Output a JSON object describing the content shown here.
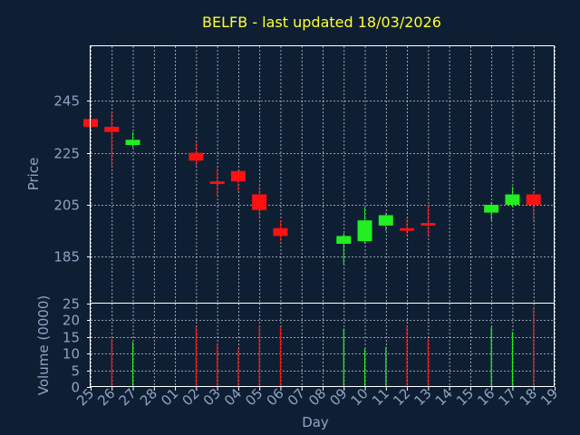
{
  "chart_data": [
    {
      "type": "candlestick",
      "title": "BELFB - last updated 18/03/2026",
      "ylabel": "Price",
      "xlabel": "Day",
      "ylim": [
        167,
        266
      ],
      "yticks": [
        185,
        205,
        225,
        245
      ],
      "grid": true,
      "colors": {
        "up": "#22ee22",
        "down": "#ff1111",
        "background": "#0f1f33",
        "text": "#8fa3c2",
        "title": "#ffff33"
      },
      "x_tick_labels": [
        "25",
        "26",
        "27",
        "28",
        "01",
        "02",
        "03",
        "04",
        "05",
        "06",
        "07",
        "08",
        "09",
        "10",
        "11",
        "12",
        "13",
        "14",
        "15",
        "16",
        "17",
        "18",
        "19"
      ],
      "candles": [
        {
          "slot": 0,
          "open": 238,
          "close": 235,
          "high": 239,
          "low": 234
        },
        {
          "slot": 1,
          "open": 235,
          "close": 233,
          "high": 241,
          "low": 220
        },
        {
          "slot": 2,
          "open": 228,
          "close": 230,
          "high": 233,
          "low": 227
        },
        {
          "slot": 5,
          "open": 225,
          "close": 222,
          "high": 229,
          "low": 220
        },
        {
          "slot": 6,
          "open": 214,
          "close": 213,
          "high": 219,
          "low": 208
        },
        {
          "slot": 7,
          "open": 218,
          "close": 214,
          "high": 218,
          "low": 210
        },
        {
          "slot": 8,
          "open": 209,
          "close": 203,
          "high": 212,
          "low": 200
        },
        {
          "slot": 9,
          "open": 196,
          "close": 193,
          "high": 199,
          "low": 191
        },
        {
          "slot": 12,
          "open": 190,
          "close": 193,
          "high": 194,
          "low": 182
        },
        {
          "slot": 13,
          "open": 191,
          "close": 199,
          "high": 204,
          "low": 190
        },
        {
          "slot": 14,
          "open": 197,
          "close": 201,
          "high": 202,
          "low": 195
        },
        {
          "slot": 15,
          "open": 196,
          "close": 195,
          "high": 200,
          "low": 193
        },
        {
          "slot": 16,
          "open": 198,
          "close": 197,
          "high": 205,
          "low": 193
        },
        {
          "slot": 19,
          "open": 202,
          "close": 205,
          "high": 206,
          "low": 199
        },
        {
          "slot": 20,
          "open": 205,
          "close": 209,
          "high": 212,
          "low": 204
        },
        {
          "slot": 21,
          "open": 209,
          "close": 205,
          "high": 210,
          "low": 199
        }
      ]
    },
    {
      "type": "bar",
      "ylabel": "Volume (0000)",
      "ylim": [
        0,
        25
      ],
      "yticks": [
        0,
        5,
        10,
        15,
        20,
        25
      ],
      "grid": true,
      "volumes": [
        {
          "slot": 1,
          "value": 14.5,
          "direction": "down"
        },
        {
          "slot": 2,
          "value": 13.5,
          "direction": "up"
        },
        {
          "slot": 5,
          "value": 18,
          "direction": "down"
        },
        {
          "slot": 6,
          "value": 13,
          "direction": "down"
        },
        {
          "slot": 7,
          "value": 11.5,
          "direction": "down"
        },
        {
          "slot": 8,
          "value": 18.5,
          "direction": "down"
        },
        {
          "slot": 9,
          "value": 18,
          "direction": "down"
        },
        {
          "slot": 12,
          "value": 17.5,
          "direction": "up"
        },
        {
          "slot": 13,
          "value": 11.5,
          "direction": "up"
        },
        {
          "slot": 14,
          "value": 12,
          "direction": "up"
        },
        {
          "slot": 15,
          "value": 18.5,
          "direction": "down"
        },
        {
          "slot": 16,
          "value": 14.5,
          "direction": "down"
        },
        {
          "slot": 19,
          "value": 18,
          "direction": "up"
        },
        {
          "slot": 20,
          "value": 16.5,
          "direction": "up"
        },
        {
          "slot": 21,
          "value": 24,
          "direction": "down"
        }
      ]
    }
  ]
}
